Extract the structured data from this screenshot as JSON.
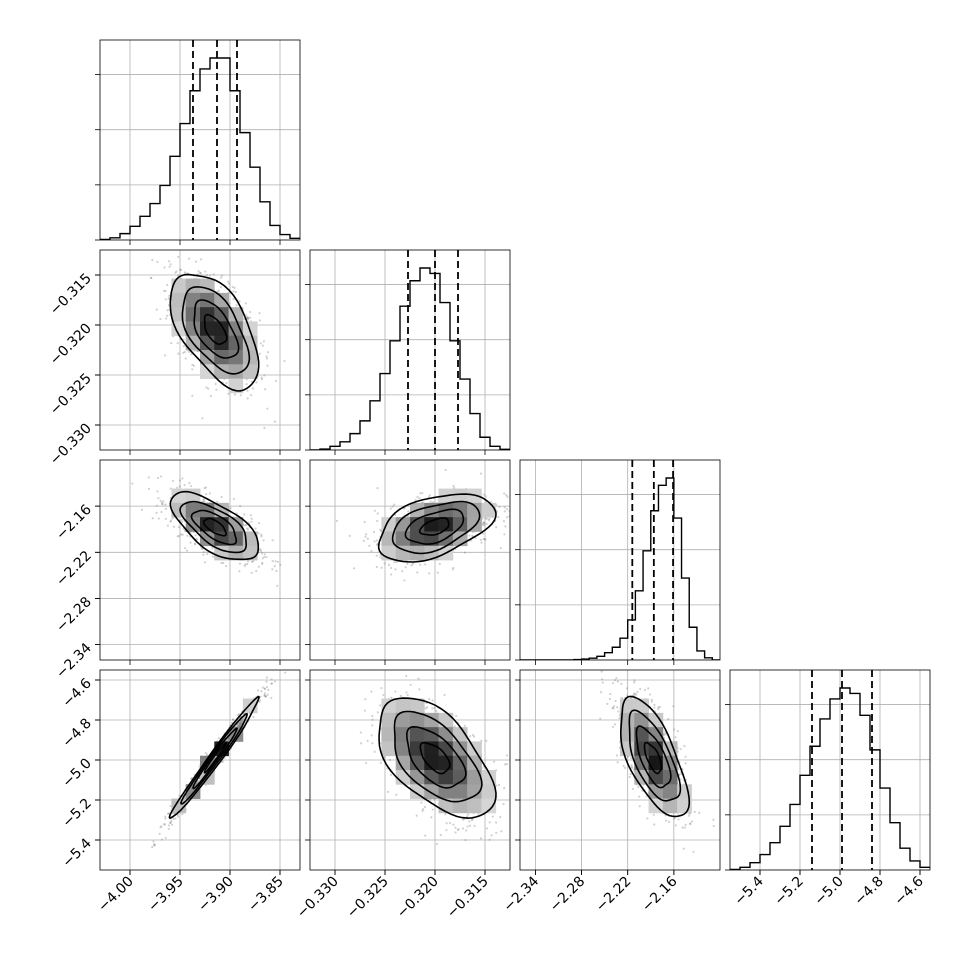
{
  "chart_data": {
    "type": "corner",
    "grid": true,
    "parameters": [
      {
        "range": [
          -4.03,
          -3.83
        ],
        "ticks": [
          -4.0,
          -3.95,
          -3.9,
          -3.85
        ],
        "tick_labels": [
          "−4.00",
          "−3.95",
          "−3.90",
          "−3.85"
        ],
        "quantiles": [
          -3.937,
          -3.913,
          -3.893
        ],
        "hist_edges": [
          -4.03,
          -4.02,
          -4.01,
          -4.0,
          -3.99,
          -3.98,
          -3.97,
          -3.96,
          -3.95,
          -3.94,
          -3.93,
          -3.92,
          -3.91,
          -3.9,
          -3.89,
          -3.88,
          -3.87,
          -3.86,
          -3.85,
          -3.84,
          -3.83
        ],
        "hist_counts": [
          0.003,
          0.012,
          0.035,
          0.075,
          0.13,
          0.2,
          0.3,
          0.46,
          0.64,
          0.82,
          0.94,
          1.0,
          1.0,
          0.82,
          0.59,
          0.4,
          0.21,
          0.08,
          0.03,
          0.009
        ]
      },
      {
        "range": [
          -0.3325,
          -0.3125
        ],
        "ticks": [
          -0.33,
          -0.325,
          -0.32,
          -0.315
        ],
        "tick_labels": [
          "−0.330",
          "−0.325",
          "−0.320",
          "−0.315"
        ],
        "quantiles": [
          -0.3227,
          -0.32,
          -0.3177
        ],
        "hist_edges": [
          -0.3325,
          -0.3315,
          -0.3305,
          -0.3295,
          -0.3285,
          -0.3275,
          -0.3265,
          -0.3255,
          -0.3245,
          -0.3235,
          -0.3225,
          -0.3215,
          -0.3205,
          -0.3195,
          -0.3185,
          -0.3175,
          -0.3165,
          -0.3155,
          -0.3145,
          -0.3135,
          -0.3125
        ],
        "hist_counts": [
          0.0,
          0.005,
          0.02,
          0.045,
          0.09,
          0.16,
          0.27,
          0.42,
          0.6,
          0.79,
          0.93,
          1.0,
          0.97,
          0.81,
          0.6,
          0.39,
          0.2,
          0.07,
          0.02,
          0.004
        ]
      },
      {
        "range": [
          -2.36,
          -2.1
        ],
        "ticks": [
          -2.34,
          -2.28,
          -2.22,
          -2.16
        ],
        "tick_labels": [
          "−2.34",
          "−2.28",
          "−2.22",
          "−2.16"
        ],
        "quantiles": [
          -2.214,
          -2.186,
          -2.161
        ],
        "hist_edges": [
          -2.36,
          -2.35,
          -2.34,
          -2.33,
          -2.32,
          -2.31,
          -2.3,
          -2.29,
          -2.28,
          -2.27,
          -2.26,
          -2.25,
          -2.24,
          -2.23,
          -2.22,
          -2.21,
          -2.2,
          -2.19,
          -2.18,
          -2.17,
          -2.16,
          -2.15,
          -2.14,
          -2.13,
          -2.12,
          -2.11,
          -2.1
        ],
        "hist_counts": [
          0.0,
          0.0,
          0.0,
          0.0,
          0.0,
          0.0,
          0.0,
          0.002,
          0.005,
          0.01,
          0.02,
          0.04,
          0.07,
          0.12,
          0.22,
          0.38,
          0.6,
          0.82,
          0.96,
          1.0,
          0.78,
          0.45,
          0.18,
          0.05,
          0.012,
          0.0
        ]
      },
      {
        "range": [
          -5.55,
          -4.55
        ],
        "ticks": [
          -5.4,
          -5.2,
          -5.0,
          -4.8,
          -4.6
        ],
        "tick_labels": [
          "−5.4",
          "−5.2",
          "−5.0",
          "−4.8",
          "−4.6"
        ],
        "quantiles": [
          -5.14,
          -4.99,
          -4.84
        ],
        "hist_edges": [
          -5.55,
          -5.5,
          -5.45,
          -5.4,
          -5.35,
          -5.3,
          -5.25,
          -5.2,
          -5.15,
          -5.1,
          -5.05,
          -5.0,
          -4.95,
          -4.9,
          -4.85,
          -4.8,
          -4.75,
          -4.7,
          -4.65,
          -4.6,
          -4.55
        ],
        "hist_counts": [
          0.003,
          0.015,
          0.04,
          0.085,
          0.15,
          0.24,
          0.36,
          0.52,
          0.68,
          0.83,
          0.94,
          1.0,
          0.97,
          0.85,
          0.66,
          0.45,
          0.26,
          0.12,
          0.05,
          0.015
        ]
      }
    ],
    "pairs": [
      {
        "row": 1,
        "col": 0,
        "center": [
          -3.915,
          -0.3205
        ],
        "sd": [
          0.022,
          0.0029
        ],
        "corr": -0.55
      },
      {
        "row": 2,
        "col": 0,
        "center": [
          -3.915,
          -2.187
        ],
        "sd": [
          0.022,
          0.022
        ],
        "corr": -0.65
      },
      {
        "row": 2,
        "col": 1,
        "center": [
          -0.32,
          -2.187
        ],
        "sd": [
          0.0029,
          0.022
        ],
        "corr": 0.45
      },
      {
        "row": 3,
        "col": 0,
        "center": [
          -3.915,
          -4.99
        ],
        "sd": [
          0.022,
          0.15
        ],
        "corr": 0.985
      },
      {
        "row": 3,
        "col": 1,
        "center": [
          -0.32,
          -4.99
        ],
        "sd": [
          0.0029,
          0.15
        ],
        "corr": -0.55
      },
      {
        "row": 3,
        "col": 2,
        "center": [
          -2.187,
          -4.99
        ],
        "sd": [
          0.022,
          0.15
        ],
        "corr": -0.65
      }
    ],
    "contour_levels_sigma": [
      0.5,
      1.0,
      1.5,
      2.0
    ],
    "colors": {
      "line": "#000000",
      "grid": "#b0b0b0",
      "scatter": "#7a7a7a"
    }
  }
}
